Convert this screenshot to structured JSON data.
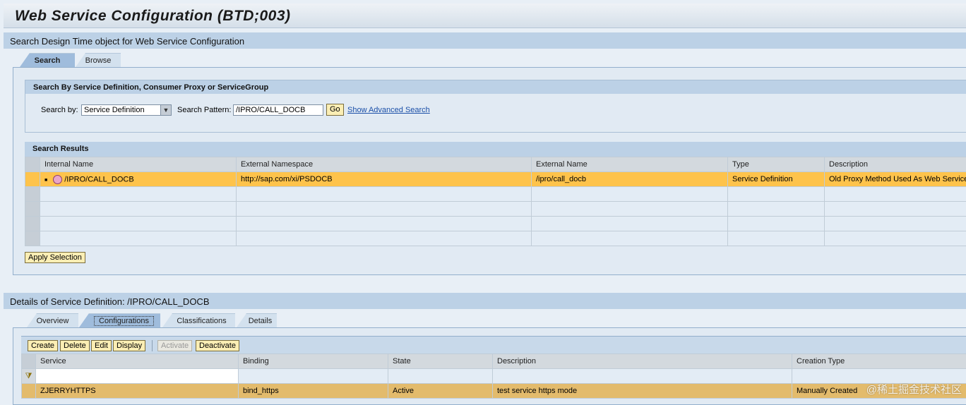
{
  "title": "Web Service Configuration (BTD;003)",
  "search_section": {
    "header": "Search Design Time object for Web Service Configuration",
    "tabs": [
      {
        "label": "Search",
        "active": true
      },
      {
        "label": "Browse",
        "active": false
      }
    ],
    "group_title": "Search By Service Definition, Consumer Proxy or ServiceGroup",
    "search_by_label": "Search by:",
    "search_by_value": "Service Definition",
    "pattern_label": "Search Pattern:",
    "pattern_value": "/IPRO/CALL_DOCB",
    "go_label": "Go",
    "advanced_link": "Show Advanced Search",
    "results_title": "Search Results",
    "columns": [
      "Internal Name",
      "External Namespace",
      "External Name",
      "Type",
      "Description"
    ],
    "rows": [
      [
        "/IPRO/CALL_DOCB",
        "http://sap.com/xi/PSDOCB",
        "/ipro/call_docb",
        "Service Definition",
        "Old Proxy Method Used As Web Service"
      ]
    ],
    "apply_label": "Apply Selection"
  },
  "details_section": {
    "header": "Details of Service Definition: /IPRO/CALL_DOCB",
    "tabs": [
      {
        "label": "Overview"
      },
      {
        "label": "Configurations",
        "active": true
      },
      {
        "label": "Classifications"
      },
      {
        "label": "Details"
      }
    ],
    "toolbar": {
      "create": "Create",
      "delete": "Delete",
      "edit": "Edit",
      "display": "Display",
      "activate": "Activate",
      "deactivate": "Deactivate"
    },
    "columns": [
      "Service",
      "Binding",
      "State",
      "Description",
      "Creation Type"
    ],
    "rows": [
      [
        "ZJERRYHTTPS",
        "bind_https",
        "Active",
        "test service https mode",
        "Manually Created"
      ]
    ]
  },
  "watermark": "@稀土掘金技术社区",
  "colors": {
    "highlight": "#fec34b",
    "header": "#bcd1e6",
    "button": "#fbeeb4"
  }
}
